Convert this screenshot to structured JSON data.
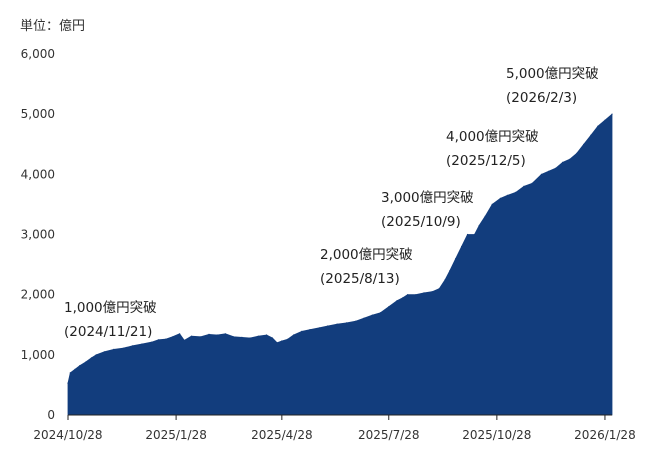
{
  "chart_data": {
    "type": "area",
    "unit_label": "単位：億円",
    "color": "#123d7d",
    "ylim": [
      0,
      6000
    ],
    "y_ticks": [
      0,
      1000,
      2000,
      3000,
      4000,
      5000,
      6000
    ],
    "y_tick_labels": [
      "0",
      "1,000",
      "2,000",
      "3,000",
      "4,000",
      "5,000",
      "6,000"
    ],
    "x_ticks": [
      "2024-10-28",
      "2025-01-28",
      "2025-04-28",
      "2025-07-28",
      "2025-10-28",
      "2026-01-28"
    ],
    "x_tick_labels": [
      "2024/10/28",
      "2025/1/28",
      "2025/4/28",
      "2025/7/28",
      "2025/10/28",
      "2026/1/28"
    ],
    "xlim": [
      "2024-10-28",
      "2026-02-03"
    ],
    "series": [
      {
        "points": [
          [
            "2024-10-28",
            530
          ],
          [
            "2024-10-30",
            700
          ],
          [
            "2024-11-03",
            760
          ],
          [
            "2024-11-07",
            820
          ],
          [
            "2024-11-12",
            880
          ],
          [
            "2024-11-17",
            950
          ],
          [
            "2024-11-21",
            1000
          ],
          [
            "2024-11-28",
            1050
          ],
          [
            "2024-12-06",
            1090
          ],
          [
            "2024-12-14",
            1110
          ],
          [
            "2024-12-22",
            1150
          ],
          [
            "2024-12-30",
            1180
          ],
          [
            "2025-01-07",
            1210
          ],
          [
            "2025-01-13",
            1250
          ],
          [
            "2025-01-19",
            1260
          ],
          [
            "2025-01-25",
            1300
          ],
          [
            "2025-01-31",
            1350
          ],
          [
            "2025-02-04",
            1240
          ],
          [
            "2025-02-10",
            1310
          ],
          [
            "2025-02-18",
            1300
          ],
          [
            "2025-02-25",
            1340
          ],
          [
            "2025-03-04",
            1330
          ],
          [
            "2025-03-11",
            1350
          ],
          [
            "2025-03-18",
            1300
          ],
          [
            "2025-03-25",
            1290
          ],
          [
            "2025-04-01",
            1280
          ],
          [
            "2025-04-08",
            1310
          ],
          [
            "2025-04-15",
            1330
          ],
          [
            "2025-04-20",
            1280
          ],
          [
            "2025-04-24",
            1200
          ],
          [
            "2025-04-28",
            1230
          ],
          [
            "2025-05-03",
            1260
          ],
          [
            "2025-05-08",
            1330
          ],
          [
            "2025-05-15",
            1390
          ],
          [
            "2025-05-22",
            1420
          ],
          [
            "2025-05-30",
            1450
          ],
          [
            "2025-06-06",
            1480
          ],
          [
            "2025-06-14",
            1510
          ],
          [
            "2025-06-22",
            1530
          ],
          [
            "2025-06-30",
            1560
          ],
          [
            "2025-07-07",
            1610
          ],
          [
            "2025-07-14",
            1660
          ],
          [
            "2025-07-21",
            1700
          ],
          [
            "2025-07-28",
            1800
          ],
          [
            "2025-08-04",
            1900
          ],
          [
            "2025-08-09",
            1950
          ],
          [
            "2025-08-13",
            2000
          ],
          [
            "2025-08-20",
            2000
          ],
          [
            "2025-08-27",
            2030
          ],
          [
            "2025-09-03",
            2050
          ],
          [
            "2025-09-09",
            2100
          ],
          [
            "2025-09-14",
            2250
          ],
          [
            "2025-09-18",
            2400
          ],
          [
            "2025-09-23",
            2600
          ],
          [
            "2025-09-28",
            2800
          ],
          [
            "2025-10-03",
            3000
          ],
          [
            "2025-10-09",
            3000
          ],
          [
            "2025-10-13",
            3150
          ],
          [
            "2025-10-18",
            3300
          ],
          [
            "2025-10-24",
            3500
          ],
          [
            "2025-10-31",
            3600
          ],
          [
            "2025-11-06",
            3650
          ],
          [
            "2025-11-13",
            3700
          ],
          [
            "2025-11-20",
            3800
          ],
          [
            "2025-11-27",
            3850
          ],
          [
            "2025-12-05",
            4000
          ],
          [
            "2025-12-11",
            4050
          ],
          [
            "2025-12-17",
            4100
          ],
          [
            "2025-12-23",
            4200
          ],
          [
            "2025-12-29",
            4250
          ],
          [
            "2026-01-04",
            4350
          ],
          [
            "2026-01-10",
            4500
          ],
          [
            "2026-01-16",
            4650
          ],
          [
            "2026-01-22",
            4800
          ],
          [
            "2026-01-28",
            4900
          ],
          [
            "2026-02-03",
            5000
          ]
        ]
      }
    ],
    "annotations": [
      {
        "line1": "1,000億円突破",
        "line2": "(2024/11/21)"
      },
      {
        "line1": "2,000億円突破",
        "line2": "(2025/8/13)"
      },
      {
        "line1": "3,000億円突破",
        "line2": "(2025/10/9)"
      },
      {
        "line1": "4,000億円突破",
        "line2": "(2025/12/5)"
      },
      {
        "line1": "5,000億円突破",
        "line2": "(2026/2/3)"
      }
    ]
  }
}
